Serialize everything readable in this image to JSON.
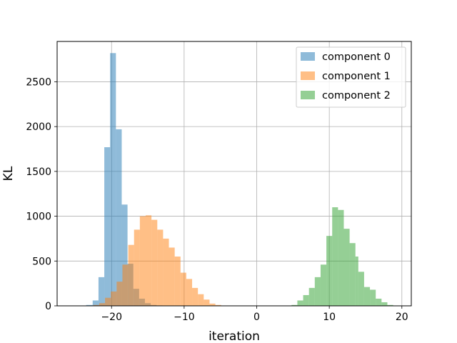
{
  "chart_data": {
    "type": "histogram",
    "title": "",
    "xlabel": "iteration",
    "ylabel": "KL",
    "xlim": [
      -27.5,
      21.3
    ],
    "ylim": [
      0,
      2950
    ],
    "xticks": [
      -20,
      -10,
      0,
      10,
      20
    ],
    "xtick_labels": [
      "−20",
      "−10",
      "0",
      "10",
      "20"
    ],
    "yticks": [
      0,
      500,
      1000,
      1500,
      2000,
      2500
    ],
    "ytick_labels": [
      "0",
      "500",
      "1000",
      "1500",
      "2000",
      "2500"
    ],
    "grid": true,
    "legend_position": "upper right",
    "series": [
      {
        "name": "component 0",
        "color": "#1f77b4",
        "opacity": 0.5,
        "bin_edges": [
          -23.5,
          -22.6,
          -21.8,
          -21.0,
          -20.2,
          -19.4,
          -18.6,
          -17.8,
          -17.0,
          -16.2,
          -15.4,
          -14.6,
          -13.8,
          -13.0,
          -12.2,
          -11.4,
          -10.6,
          -9.8
        ],
        "counts": [
          10,
          60,
          320,
          1770,
          2820,
          1970,
          1130,
          470,
          190,
          80,
          30,
          10,
          5,
          3,
          2,
          1,
          1
        ]
      },
      {
        "name": "component 1",
        "color": "#ff7f0e",
        "opacity": 0.5,
        "bin_edges": [
          -23.4,
          -22.5,
          -21.7,
          -20.9,
          -20.1,
          -19.3,
          -18.5,
          -17.7,
          -16.9,
          -16.1,
          -15.3,
          -14.5,
          -13.7,
          -12.9,
          -12.1,
          -11.3,
          -10.5,
          -9.7,
          -8.9,
          -8.1,
          -7.3,
          -6.5,
          -5.7,
          -4.9,
          -4.1
        ],
        "counts": [
          3,
          10,
          30,
          90,
          160,
          270,
          460,
          680,
          850,
          1000,
          1010,
          960,
          850,
          750,
          650,
          550,
          370,
          300,
          200,
          130,
          70,
          25,
          10,
          3
        ]
      },
      {
        "name": "component 2",
        "color": "#2ca02c",
        "opacity": 0.5,
        "bin_edges": [
          4.8,
          5.6,
          6.4,
          7.2,
          8.0,
          8.8,
          9.6,
          10.4,
          11.2,
          12.0,
          12.8,
          13.6,
          14.0,
          14.8,
          15.6,
          16.4,
          17.2,
          18.0,
          18.8
        ],
        "counts": [
          10,
          60,
          120,
          200,
          320,
          460,
          780,
          1100,
          1070,
          860,
          700,
          550,
          380,
          210,
          180,
          80,
          40,
          10
        ]
      }
    ]
  }
}
